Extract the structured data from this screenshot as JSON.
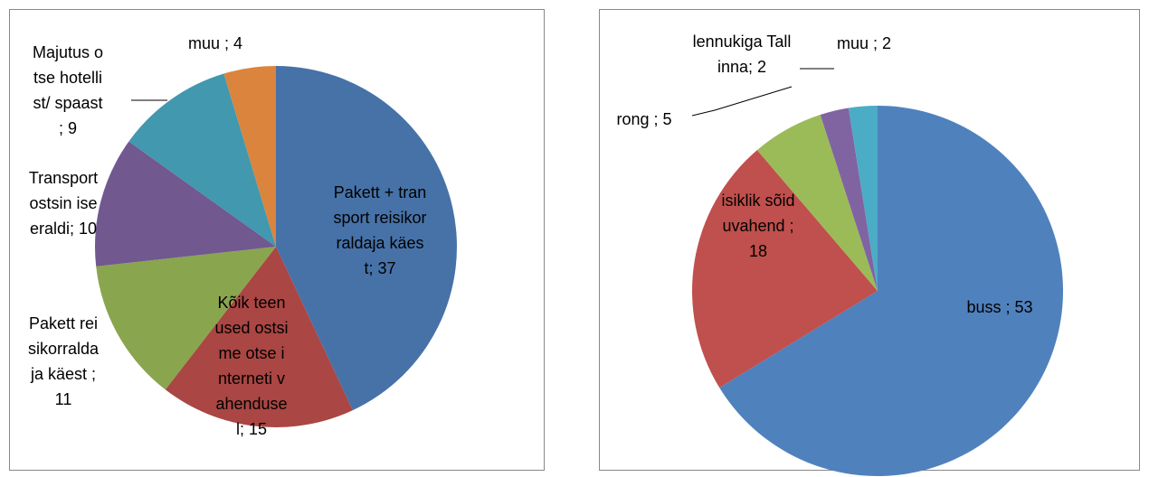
{
  "chart_data": [
    {
      "type": "pie",
      "labels": [
        "Pakett + transport reisikorraldaja käest; 37",
        "Kõik teenused ostsime otse interneti vahendusel; 15",
        "Pakett reisikorraldaja käest ; 11",
        "Transport ostsin ise eraldi; 10",
        "Majutus otse hotellist/ spaast ; 9",
        "muu ; 4"
      ],
      "values": [
        37,
        15,
        11,
        10,
        9,
        4
      ],
      "colors": [
        "#4672a8",
        "#aa4643",
        "#89a54e",
        "#71588f",
        "#4198af",
        "#db843d"
      ]
    },
    {
      "type": "pie",
      "labels": [
        "buss ; 53",
        "isiklik sõiduvahend ; 18",
        "rong ; 5",
        "lennukiga Tallinna; 2",
        "muu ; 2"
      ],
      "values": [
        53,
        18,
        5,
        2,
        2
      ],
      "colors": [
        "#4f81bd",
        "#c0504d",
        "#9bbb59",
        "#8064a2",
        "#4bacc6"
      ]
    }
  ]
}
